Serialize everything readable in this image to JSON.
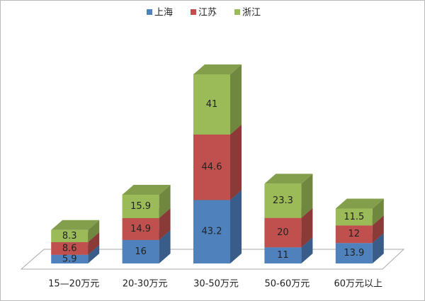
{
  "chart_data": {
    "type": "bar",
    "stacked": true,
    "categories": [
      "15—20万元",
      "20-30万元",
      "30-50万元",
      "50-60万元",
      "60万元以上"
    ],
    "series": [
      {
        "name": "上海",
        "color": "#4f81bd",
        "values": [
          5.9,
          16,
          43.2,
          11,
          13.9
        ]
      },
      {
        "name": "江苏",
        "color": "#c0504d",
        "values": [
          8.6,
          14.9,
          44.6,
          20,
          12
        ]
      },
      {
        "name": "浙江",
        "color": "#9bbb59",
        "values": [
          8.3,
          15.9,
          41,
          23.3,
          11.5
        ]
      }
    ],
    "legend": "top"
  }
}
